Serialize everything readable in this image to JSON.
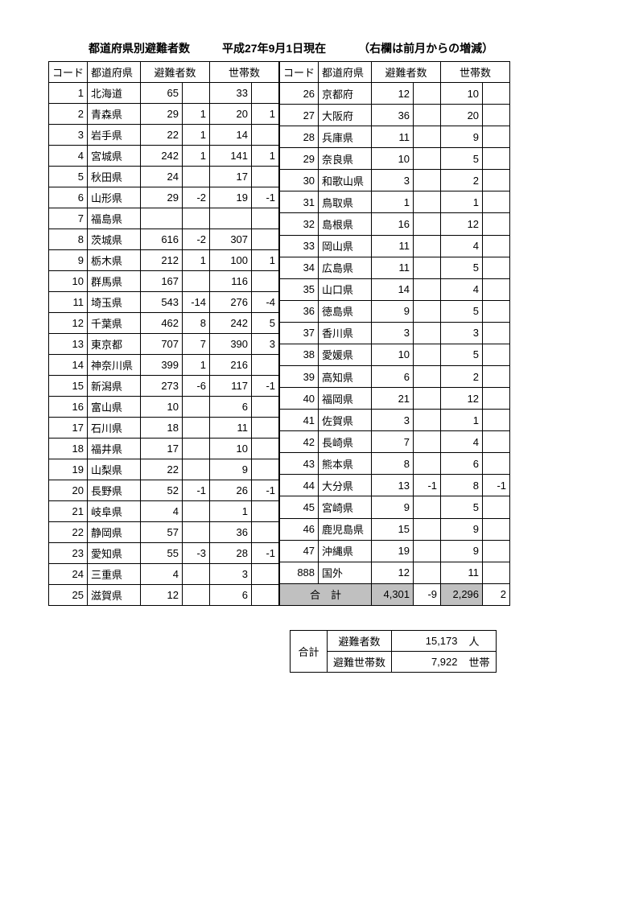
{
  "title": {
    "main": "都道府県別避難者数",
    "date": "平成27年9月1日現在",
    "note": "（右欄は前月からの増減）"
  },
  "headers": {
    "code": "コード",
    "pref": "都道府県",
    "evac": "避難者数",
    "house": "世帯数"
  },
  "left_rows": [
    {
      "code": "1",
      "pref": "北海道",
      "evac": "65",
      "evac_d": "",
      "house": "33",
      "house_d": ""
    },
    {
      "code": "2",
      "pref": "青森県",
      "evac": "29",
      "evac_d": "1",
      "house": "20",
      "house_d": "1"
    },
    {
      "code": "3",
      "pref": "岩手県",
      "evac": "22",
      "evac_d": "1",
      "house": "14",
      "house_d": ""
    },
    {
      "code": "4",
      "pref": "宮城県",
      "evac": "242",
      "evac_d": "1",
      "house": "141",
      "house_d": "1"
    },
    {
      "code": "5",
      "pref": "秋田県",
      "evac": "24",
      "evac_d": "",
      "house": "17",
      "house_d": ""
    },
    {
      "code": "6",
      "pref": "山形県",
      "evac": "29",
      "evac_d": "-2",
      "house": "19",
      "house_d": "-1"
    },
    {
      "code": "7",
      "pref": "福島県",
      "evac": "",
      "evac_d": "",
      "house": "",
      "house_d": ""
    },
    {
      "code": "8",
      "pref": "茨城県",
      "evac": "616",
      "evac_d": "-2",
      "house": "307",
      "house_d": ""
    },
    {
      "code": "9",
      "pref": "栃木県",
      "evac": "212",
      "evac_d": "1",
      "house": "100",
      "house_d": "1"
    },
    {
      "code": "10",
      "pref": "群馬県",
      "evac": "167",
      "evac_d": "",
      "house": "116",
      "house_d": ""
    },
    {
      "code": "11",
      "pref": "埼玉県",
      "evac": "543",
      "evac_d": "-14",
      "house": "276",
      "house_d": "-4"
    },
    {
      "code": "12",
      "pref": "千葉県",
      "evac": "462",
      "evac_d": "8",
      "house": "242",
      "house_d": "5"
    },
    {
      "code": "13",
      "pref": "東京都",
      "evac": "707",
      "evac_d": "7",
      "house": "390",
      "house_d": "3"
    },
    {
      "code": "14",
      "pref": "神奈川県",
      "evac": "399",
      "evac_d": "1",
      "house": "216",
      "house_d": ""
    },
    {
      "code": "15",
      "pref": "新潟県",
      "evac": "273",
      "evac_d": "-6",
      "house": "117",
      "house_d": "-1"
    },
    {
      "code": "16",
      "pref": "富山県",
      "evac": "10",
      "evac_d": "",
      "house": "6",
      "house_d": ""
    },
    {
      "code": "17",
      "pref": "石川県",
      "evac": "18",
      "evac_d": "",
      "house": "11",
      "house_d": ""
    },
    {
      "code": "18",
      "pref": "福井県",
      "evac": "17",
      "evac_d": "",
      "house": "10",
      "house_d": ""
    },
    {
      "code": "19",
      "pref": "山梨県",
      "evac": "22",
      "evac_d": "",
      "house": "9",
      "house_d": ""
    },
    {
      "code": "20",
      "pref": "長野県",
      "evac": "52",
      "evac_d": "-1",
      "house": "26",
      "house_d": "-1"
    },
    {
      "code": "21",
      "pref": "岐阜県",
      "evac": "4",
      "evac_d": "",
      "house": "1",
      "house_d": ""
    },
    {
      "code": "22",
      "pref": "静岡県",
      "evac": "57",
      "evac_d": "",
      "house": "36",
      "house_d": ""
    },
    {
      "code": "23",
      "pref": "愛知県",
      "evac": "55",
      "evac_d": "-3",
      "house": "28",
      "house_d": "-1"
    },
    {
      "code": "24",
      "pref": "三重県",
      "evac": "4",
      "evac_d": "",
      "house": "3",
      "house_d": ""
    },
    {
      "code": "25",
      "pref": "滋賀県",
      "evac": "12",
      "evac_d": "",
      "house": "6",
      "house_d": ""
    }
  ],
  "right_rows": [
    {
      "code": "26",
      "pref": "京都府",
      "evac": "12",
      "evac_d": "",
      "house": "10",
      "house_d": ""
    },
    {
      "code": "27",
      "pref": "大阪府",
      "evac": "36",
      "evac_d": "",
      "house": "20",
      "house_d": ""
    },
    {
      "code": "28",
      "pref": "兵庫県",
      "evac": "11",
      "evac_d": "",
      "house": "9",
      "house_d": ""
    },
    {
      "code": "29",
      "pref": "奈良県",
      "evac": "10",
      "evac_d": "",
      "house": "5",
      "house_d": ""
    },
    {
      "code": "30",
      "pref": "和歌山県",
      "evac": "3",
      "evac_d": "",
      "house": "2",
      "house_d": ""
    },
    {
      "code": "31",
      "pref": "鳥取県",
      "evac": "1",
      "evac_d": "",
      "house": "1",
      "house_d": ""
    },
    {
      "code": "32",
      "pref": "島根県",
      "evac": "16",
      "evac_d": "",
      "house": "12",
      "house_d": ""
    },
    {
      "code": "33",
      "pref": "岡山県",
      "evac": "11",
      "evac_d": "",
      "house": "4",
      "house_d": ""
    },
    {
      "code": "34",
      "pref": "広島県",
      "evac": "11",
      "evac_d": "",
      "house": "5",
      "house_d": ""
    },
    {
      "code": "35",
      "pref": "山口県",
      "evac": "14",
      "evac_d": "",
      "house": "4",
      "house_d": ""
    },
    {
      "code": "36",
      "pref": "徳島県",
      "evac": "9",
      "evac_d": "",
      "house": "5",
      "house_d": ""
    },
    {
      "code": "37",
      "pref": "香川県",
      "evac": "3",
      "evac_d": "",
      "house": "3",
      "house_d": ""
    },
    {
      "code": "38",
      "pref": "愛媛県",
      "evac": "10",
      "evac_d": "",
      "house": "5",
      "house_d": ""
    },
    {
      "code": "39",
      "pref": "高知県",
      "evac": "6",
      "evac_d": "",
      "house": "2",
      "house_d": ""
    },
    {
      "code": "40",
      "pref": "福岡県",
      "evac": "21",
      "evac_d": "",
      "house": "12",
      "house_d": ""
    },
    {
      "code": "41",
      "pref": "佐賀県",
      "evac": "3",
      "evac_d": "",
      "house": "1",
      "house_d": ""
    },
    {
      "code": "42",
      "pref": "長崎県",
      "evac": "7",
      "evac_d": "",
      "house": "4",
      "house_d": ""
    },
    {
      "code": "43",
      "pref": "熊本県",
      "evac": "8",
      "evac_d": "",
      "house": "6",
      "house_d": ""
    },
    {
      "code": "44",
      "pref": "大分県",
      "evac": "13",
      "evac_d": "-1",
      "house": "8",
      "house_d": "-1"
    },
    {
      "code": "45",
      "pref": "宮崎県",
      "evac": "9",
      "evac_d": "",
      "house": "5",
      "house_d": ""
    },
    {
      "code": "46",
      "pref": "鹿児島県",
      "evac": "15",
      "evac_d": "",
      "house": "9",
      "house_d": ""
    },
    {
      "code": "47",
      "pref": "沖縄県",
      "evac": "19",
      "evac_d": "",
      "house": "9",
      "house_d": ""
    },
    {
      "code": "888",
      "pref": "国外",
      "evac": "12",
      "evac_d": "",
      "house": "11",
      "house_d": ""
    }
  ],
  "subtotal": {
    "label": "合　計",
    "evac": "4,301",
    "evac_d": "-9",
    "house": "2,296",
    "house_d": "2"
  },
  "summary": {
    "label": "合計",
    "rows": [
      {
        "k": "避難者数",
        "v": "15,173",
        "u": "人"
      },
      {
        "k": "避難世帯数",
        "v": "7,922",
        "u": "世帯"
      }
    ]
  },
  "styling": {
    "border_color": "#000000",
    "highlight_bg": "#c0c0c0",
    "font_size_body": 13,
    "font_size_title": 14,
    "col_widths": {
      "code": 36,
      "pref": 66,
      "num": 52,
      "diff": 34
    }
  }
}
